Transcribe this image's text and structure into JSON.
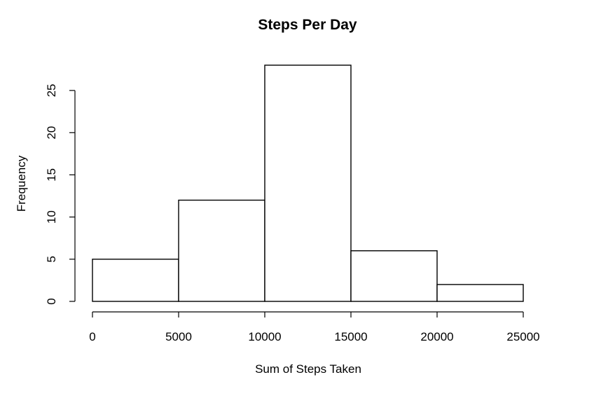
{
  "chart_data": {
    "type": "bar",
    "title": "Steps Per Day",
    "xlabel": "Sum of Steps Taken",
    "ylabel": "Frequency",
    "bins": [
      {
        "start": 0,
        "end": 5000,
        "count": 5
      },
      {
        "start": 5000,
        "end": 10000,
        "count": 12
      },
      {
        "start": 10000,
        "end": 15000,
        "count": 28
      },
      {
        "start": 15000,
        "end": 20000,
        "count": 6
      },
      {
        "start": 20000,
        "end": 25000,
        "count": 2
      }
    ],
    "xticks": [
      0,
      5000,
      10000,
      15000,
      20000,
      25000
    ],
    "yticks": [
      0,
      5,
      10,
      15,
      20,
      25
    ],
    "xlim": [
      0,
      25000
    ],
    "ylim": [
      0,
      28
    ],
    "grid": false
  }
}
